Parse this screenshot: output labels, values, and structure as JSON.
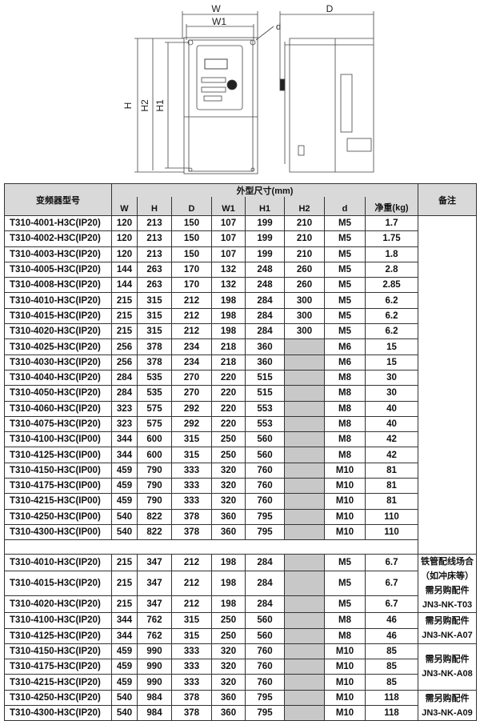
{
  "drawing": {
    "front_labels": {
      "W": "W",
      "W1": "W1",
      "H": "H",
      "H2": "H2",
      "H1": "H1",
      "d": "d"
    },
    "side_labels": {
      "D": "D"
    }
  },
  "table": {
    "model_header": "变频器型号",
    "dims_header": "外型尺寸(mm)",
    "columns": [
      "W",
      "H",
      "D",
      "W1",
      "H1",
      "H2",
      "d",
      "净重(kg)"
    ],
    "remark_header": "备注",
    "section1": [
      [
        "T310-4001-H3C(IP20)",
        "120",
        "213",
        "150",
        "107",
        "199",
        "210",
        "M5",
        "1.7"
      ],
      [
        "T310-4002-H3C(IP20)",
        "120",
        "213",
        "150",
        "107",
        "199",
        "210",
        "M5",
        "1.75"
      ],
      [
        "T310-4003-H3C(IP20)",
        "120",
        "213",
        "150",
        "107",
        "199",
        "210",
        "M5",
        "1.8"
      ],
      [
        "T310-4005-H3C(IP20)",
        "144",
        "263",
        "170",
        "132",
        "248",
        "260",
        "M5",
        "2.8"
      ],
      [
        "T310-4008-H3C(IP20)",
        "144",
        "263",
        "170",
        "132",
        "248",
        "260",
        "M5",
        "2.85"
      ],
      [
        "T310-4010-H3C(IP20)",
        "215",
        "315",
        "212",
        "198",
        "284",
        "300",
        "M5",
        "6.2"
      ],
      [
        "T310-4015-H3C(IP20)",
        "215",
        "315",
        "212",
        "198",
        "284",
        "300",
        "M5",
        "6.2"
      ],
      [
        "T310-4020-H3C(IP20)",
        "215",
        "315",
        "212",
        "198",
        "284",
        "300",
        "M5",
        "6.2"
      ],
      [
        "T310-4025-H3C(IP20)",
        "256",
        "378",
        "234",
        "218",
        "360",
        null,
        "M6",
        "15"
      ],
      [
        "T310-4030-H3C(IP20)",
        "256",
        "378",
        "234",
        "218",
        "360",
        null,
        "M6",
        "15"
      ],
      [
        "T310-4040-H3C(IP20)",
        "284",
        "535",
        "270",
        "220",
        "515",
        null,
        "M8",
        "30"
      ],
      [
        "T310-4050-H3C(IP20)",
        "284",
        "535",
        "270",
        "220",
        "515",
        null,
        "M8",
        "30"
      ],
      [
        "T310-4060-H3C(IP20)",
        "323",
        "575",
        "292",
        "220",
        "553",
        null,
        "M8",
        "40"
      ],
      [
        "T310-4075-H3C(IP20)",
        "323",
        "575",
        "292",
        "220",
        "553",
        null,
        "M8",
        "40"
      ],
      [
        "T310-4100-H3C(IP00)",
        "344",
        "600",
        "315",
        "250",
        "560",
        null,
        "M8",
        "42"
      ],
      [
        "T310-4125-H3C(IP00)",
        "344",
        "600",
        "315",
        "250",
        "560",
        null,
        "M8",
        "42"
      ],
      [
        "T310-4150-H3C(IP00)",
        "459",
        "790",
        "333",
        "320",
        "760",
        null,
        "M10",
        "81"
      ],
      [
        "T310-4175-H3C(IP00)",
        "459",
        "790",
        "333",
        "320",
        "760",
        null,
        "M10",
        "81"
      ],
      [
        "T310-4215-H3C(IP00)",
        "459",
        "790",
        "333",
        "320",
        "760",
        null,
        "M10",
        "81"
      ],
      [
        "T310-4250-H3C(IP00)",
        "540",
        "822",
        "378",
        "360",
        "795",
        null,
        "M10",
        "110"
      ],
      [
        "T310-4300-H3C(IP00)",
        "540",
        "822",
        "378",
        "360",
        "795",
        null,
        "M10",
        "110"
      ]
    ],
    "section2": [
      [
        "T310-4010-H3C(IP20)",
        "215",
        "347",
        "212",
        "198",
        "284",
        null,
        "M5",
        "6.7"
      ],
      [
        "T310-4015-H3C(IP20)",
        "215",
        "347",
        "212",
        "198",
        "284",
        null,
        "M5",
        "6.7"
      ],
      [
        "T310-4020-H3C(IP20)",
        "215",
        "347",
        "212",
        "198",
        "284",
        null,
        "M5",
        "6.7"
      ],
      [
        "T310-4100-H3C(IP20)",
        "344",
        "762",
        "315",
        "250",
        "560",
        null,
        "M8",
        "46"
      ],
      [
        "T310-4125-H3C(IP20)",
        "344",
        "762",
        "315",
        "250",
        "560",
        null,
        "M8",
        "46"
      ],
      [
        "T310-4150-H3C(IP20)",
        "459",
        "990",
        "333",
        "320",
        "760",
        null,
        "M10",
        "85"
      ],
      [
        "T310-4175-H3C(IP20)",
        "459",
        "990",
        "333",
        "320",
        "760",
        null,
        "M10",
        "85"
      ],
      [
        "T310-4215-H3C(IP20)",
        "459",
        "990",
        "333",
        "320",
        "760",
        null,
        "M10",
        "85"
      ],
      [
        "T310-4250-H3C(IP20)",
        "540",
        "984",
        "378",
        "360",
        "795",
        null,
        "M10",
        "118"
      ],
      [
        "T310-4300-H3C(IP20)",
        "540",
        "984",
        "378",
        "360",
        "795",
        null,
        "M10",
        "118"
      ]
    ],
    "section2_remarks": [
      {
        "span": 3,
        "lines": [
          "铁管配线场合",
          "（如冲床等）",
          "需另购配件",
          "JN3-NK-T03"
        ]
      },
      {
        "span": 2,
        "lines": [
          "需另购配件",
          "JN3-NK-A07"
        ]
      },
      {
        "span": 3,
        "lines": [
          "需另购配件",
          "JN3-NK-A08"
        ]
      },
      {
        "span": 2,
        "lines": [
          "需另购配件",
          "JN3-NK-A09"
        ]
      }
    ],
    "colors": {
      "header_bg": "#d9d9d9",
      "empty_cell": "#c8c8c8"
    }
  }
}
